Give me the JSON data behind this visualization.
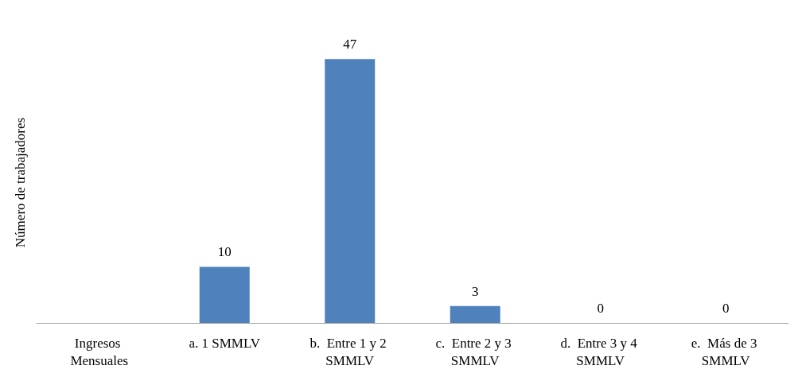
{
  "chart_data": {
    "type": "bar",
    "ylabel": "Número de trabajadores",
    "categories": [
      "Ingresos Mensuales",
      "a. 1 SMMLV",
      "b.  Entre 1 y 2 SMMLV",
      "c.  Entre 2 y 3 SMMLV",
      "d.  Entre 3 y 4 SMMLV",
      "e.  Más de 3 SMMLV"
    ],
    "values": [
      null,
      10,
      47,
      3,
      0,
      0
    ],
    "color": "#4f81bd",
    "data_labels": true
  }
}
